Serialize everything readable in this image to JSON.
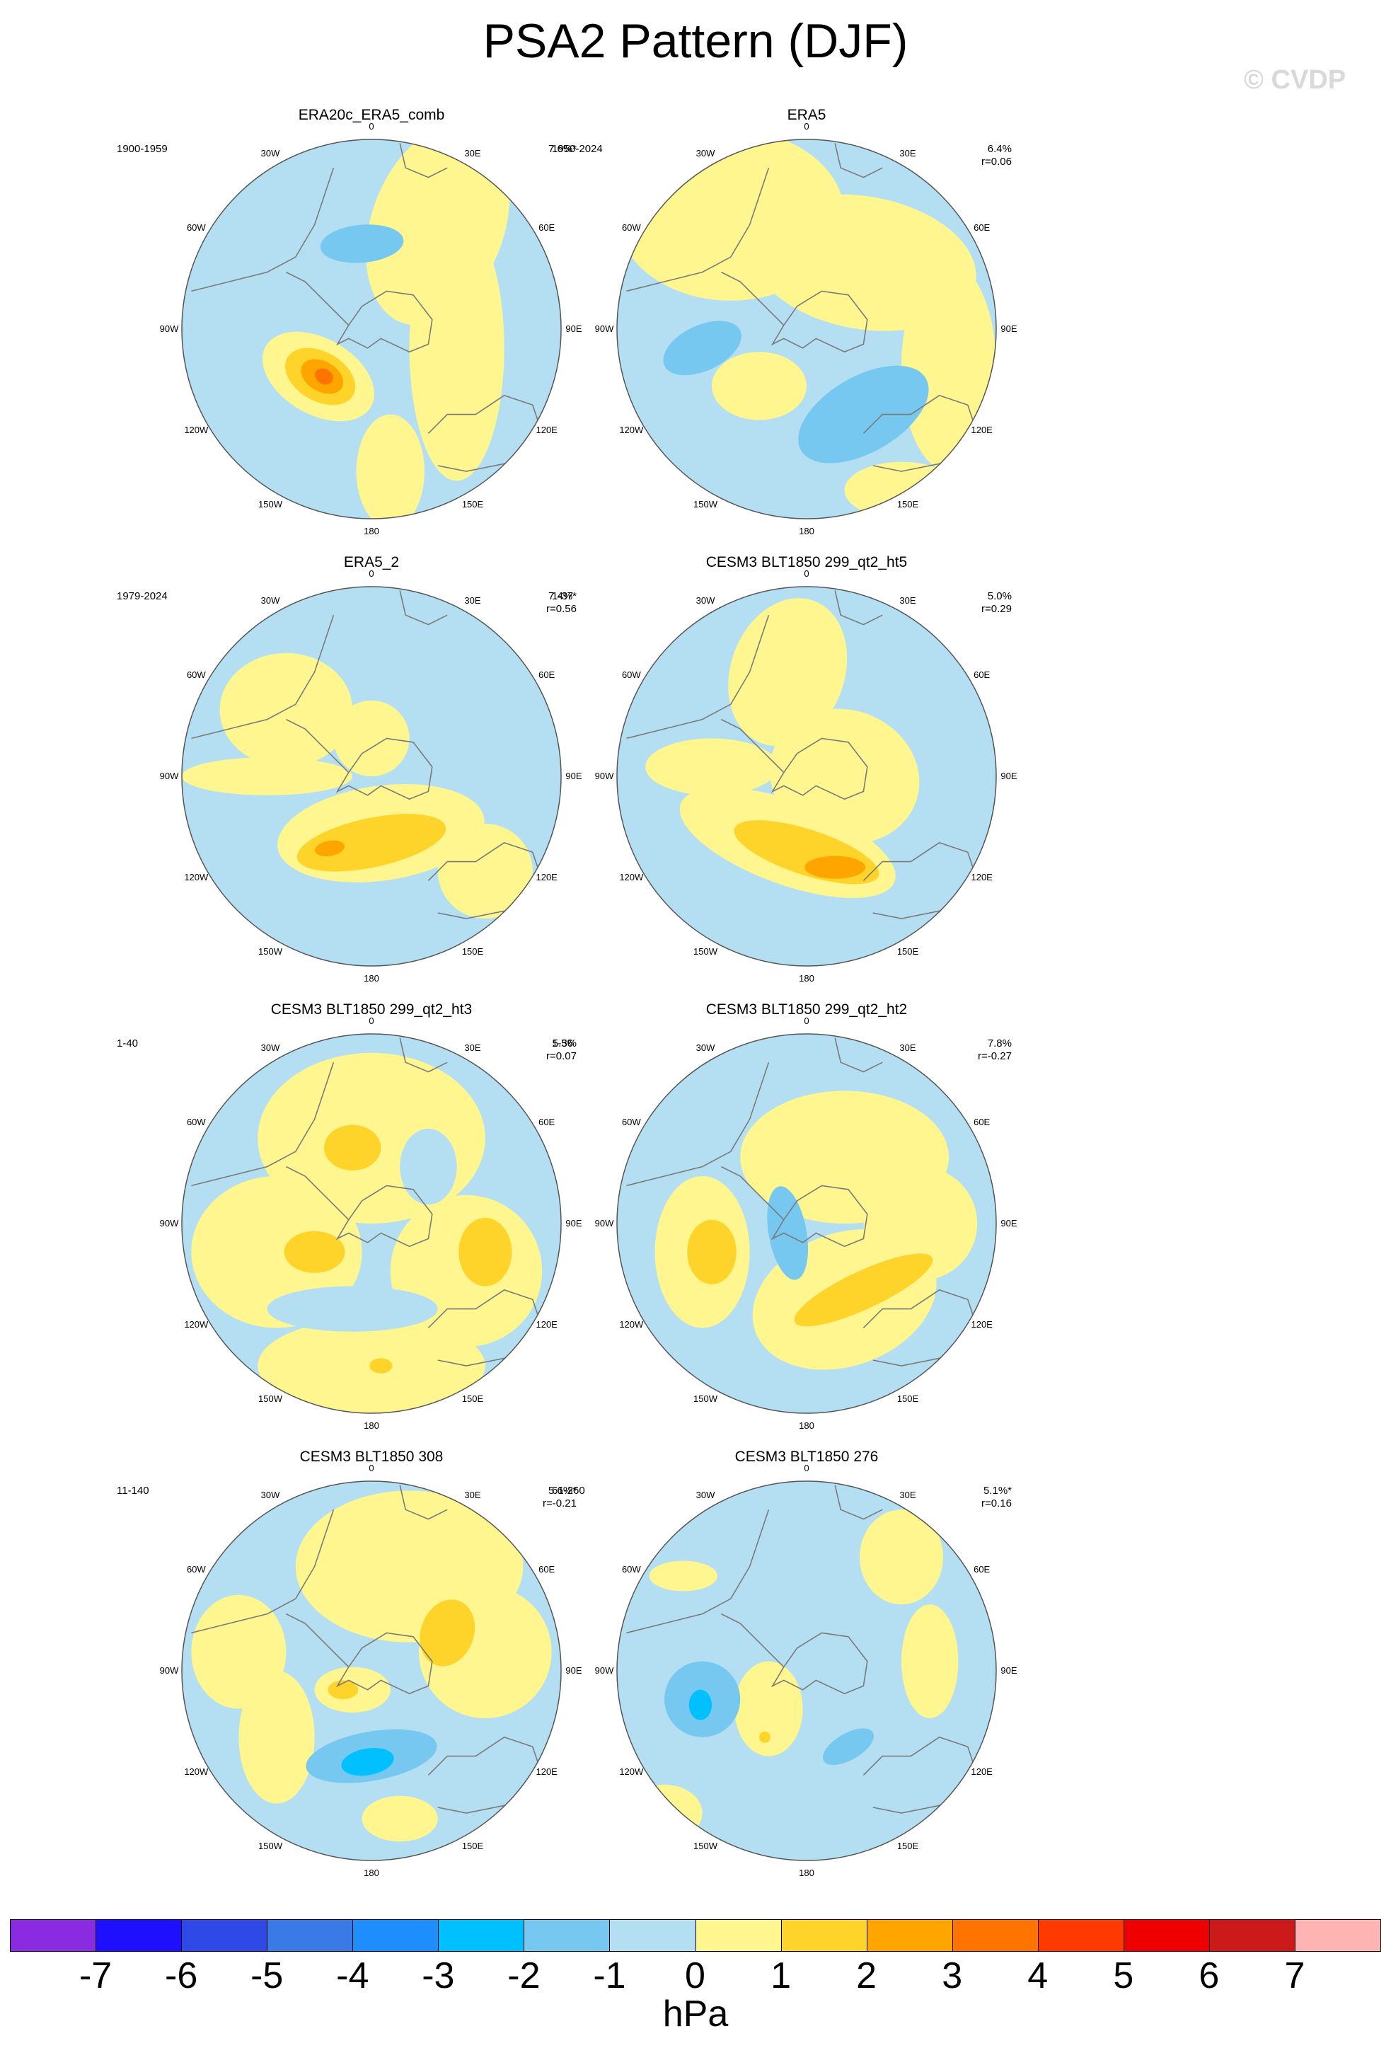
{
  "title": "PSA2 Pattern (DJF)",
  "copyright": "© CVDP",
  "longitude_labels": [
    "0",
    "30E",
    "60E",
    "90E",
    "120E",
    "150E",
    "180",
    "150W",
    "120W",
    "90W",
    "60W",
    "30W"
  ],
  "panels": [
    {
      "name": "ERA20c_ERA5_comb",
      "years": "1900-1959",
      "pct": "7.6%*",
      "r": ""
    },
    {
      "name": "ERA5",
      "years": "1950-2024",
      "pct": "6.4%",
      "r": "r=0.06"
    },
    {
      "name": "ERA5_2",
      "years": "1979-2024",
      "pct": "7.4%*",
      "r": "r=0.56"
    },
    {
      "name": "CESM3 BLT1850 299_qt2_ht5",
      "years": "1-37",
      "pct": "5.0%",
      "r": "r=0.29"
    },
    {
      "name": "CESM3 BLT1850 299_qt2_ht3",
      "years": "1-40",
      "pct": "5.5%",
      "r": "r=0.07"
    },
    {
      "name": "CESM3 BLT1850 299_qt2_ht2",
      "years": "1-36",
      "pct": "7.8%",
      "r": "r=-0.27"
    },
    {
      "name": "CESM3 BLT1850 308",
      "years": "11-140",
      "pct": "5.6%*",
      "r": "r=-0.21"
    },
    {
      "name": "CESM3 BLT1850 276",
      "years": "61-260",
      "pct": "5.1%*",
      "r": "r=0.16"
    }
  ],
  "colorbar": {
    "units": "hPa",
    "labels": [
      "-7",
      "-6",
      "-5",
      "-4",
      "-3",
      "-2",
      "-1",
      "0",
      "1",
      "2",
      "3",
      "4",
      "5",
      "6",
      "7"
    ],
    "colors": [
      "#8a2be2",
      "#1e10ff",
      "#2e49e6",
      "#3a7ae6",
      "#1e8eff",
      "#00c0ff",
      "#76c8f0",
      "#b4dff2",
      "#fff68f",
      "#ffd42a",
      "#ffa500",
      "#ff7300",
      "#ff3a00",
      "#ee0000",
      "#cc1a1a",
      "#ffb4b4"
    ]
  },
  "colors": {
    "neg1": "#b4dff2",
    "neg2": "#76c8f0",
    "neg3": "#00c0ff",
    "pos1": "#fff68f",
    "pos2": "#ffd42a",
    "pos3": "#ffa500",
    "pos4": "#ff7300",
    "coast": "#7a7a7a"
  }
}
